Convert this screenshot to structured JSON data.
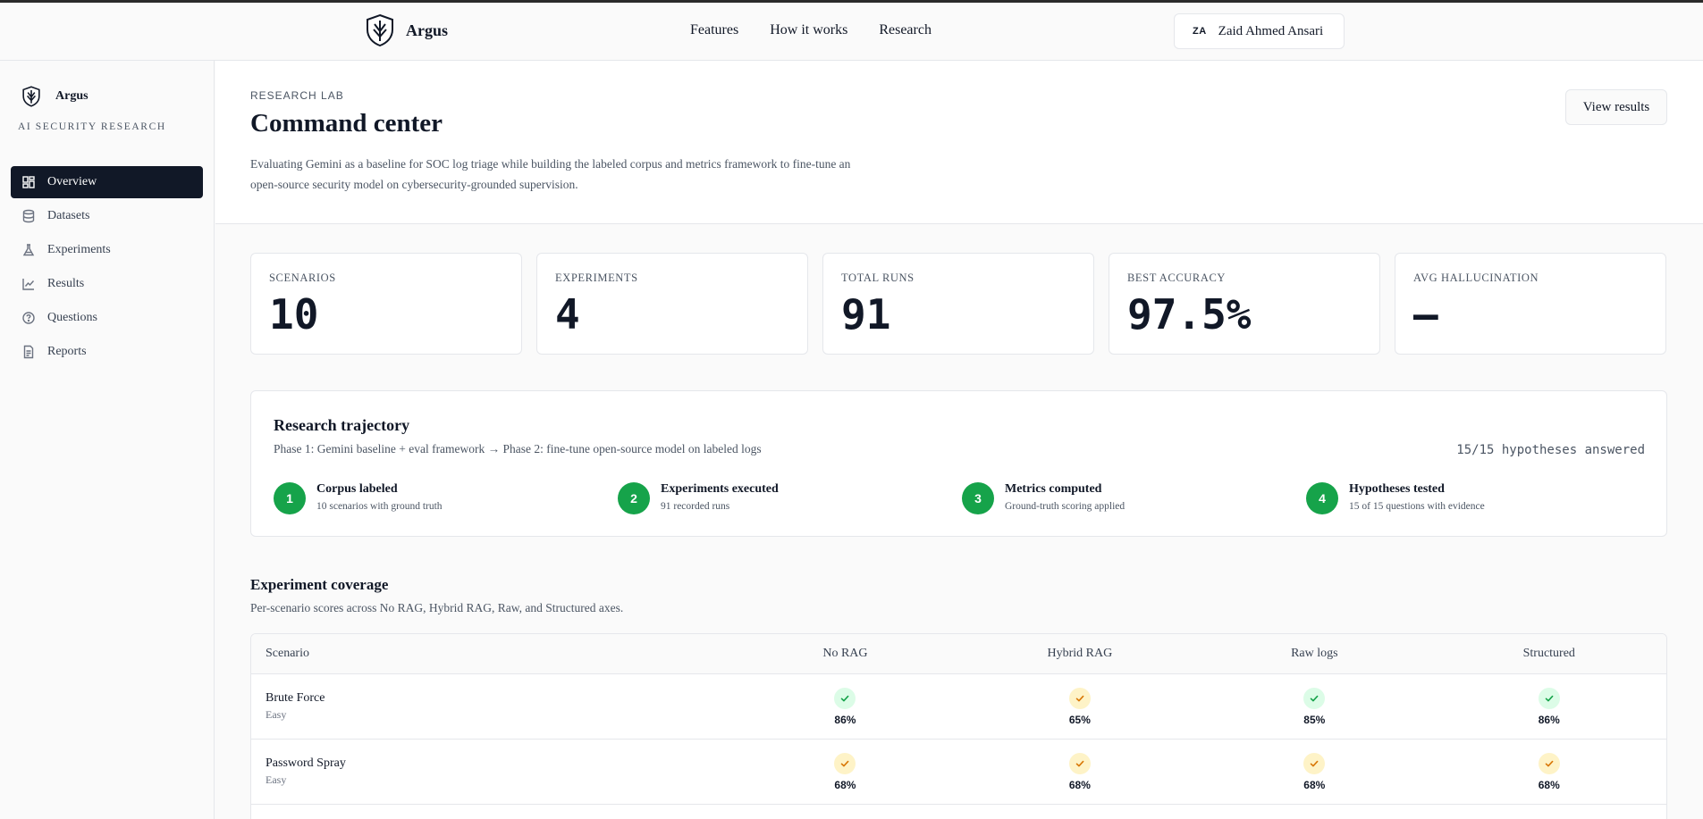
{
  "topnav": {
    "brand": "Argus",
    "links": [
      "Features",
      "How it works",
      "Research"
    ],
    "user": {
      "initials": "ZA",
      "name": "Zaid Ahmed Ansari"
    }
  },
  "sidebar": {
    "brand": "Argus",
    "tagline": "AI SECURITY RESEARCH",
    "items": [
      {
        "label": "Overview",
        "icon": "grid-icon",
        "active": true
      },
      {
        "label": "Datasets",
        "icon": "database-icon",
        "active": false
      },
      {
        "label": "Experiments",
        "icon": "flask-icon",
        "active": false
      },
      {
        "label": "Results",
        "icon": "line-chart-icon",
        "active": false
      },
      {
        "label": "Questions",
        "icon": "help-circle-icon",
        "active": false
      },
      {
        "label": "Reports",
        "icon": "file-text-icon",
        "active": false
      }
    ]
  },
  "header": {
    "eyebrow": "RESEARCH LAB",
    "title": "Command center",
    "description": "Evaluating Gemini as a baseline for SOC log triage while building the labeled corpus and metrics framework to fine-tune an open-source security model on cybersecurity-grounded supervision.",
    "action": "View results"
  },
  "stats": [
    {
      "label": "SCENARIOS",
      "value": "10"
    },
    {
      "label": "EXPERIMENTS",
      "value": "4"
    },
    {
      "label": "TOTAL RUNS",
      "value": "91"
    },
    {
      "label": "BEST ACCURACY",
      "value": "97.5%"
    },
    {
      "label": "AVG HALLUCINATION",
      "value": "–"
    }
  ],
  "trajectory": {
    "title": "Research trajectory",
    "subtitle": "Phase 1: Gemini baseline + eval framework → Phase 2: fine-tune open-source model on labeled logs",
    "count": "15/15 hypotheses answered",
    "steps": [
      {
        "num": "1",
        "title": "Corpus labeled",
        "detail": "10 scenarios with ground truth"
      },
      {
        "num": "2",
        "title": "Experiments executed",
        "detail": "91 recorded runs"
      },
      {
        "num": "3",
        "title": "Metrics computed",
        "detail": "Ground-truth scoring applied"
      },
      {
        "num": "4",
        "title": "Hypotheses tested",
        "detail": "15 of 15 questions with evidence"
      }
    ]
  },
  "coverage": {
    "title": "Experiment coverage",
    "subtitle": "Per-scenario scores across No RAG, Hybrid RAG, Raw, and Structured axes.",
    "columns": [
      "Scenario",
      "No RAG",
      "Hybrid RAG",
      "Raw logs",
      "Structured"
    ],
    "rows": [
      {
        "name": "Brute Force",
        "difficulty": "Easy",
        "cells": [
          {
            "value": "86%",
            "status": "good"
          },
          {
            "value": "65%",
            "status": "warn"
          },
          {
            "value": "85%",
            "status": "good"
          },
          {
            "value": "86%",
            "status": "good"
          }
        ]
      },
      {
        "name": "Password Spray",
        "difficulty": "Easy",
        "cells": [
          {
            "value": "68%",
            "status": "warn"
          },
          {
            "value": "68%",
            "status": "warn"
          },
          {
            "value": "68%",
            "status": "warn"
          },
          {
            "value": "68%",
            "status": "warn"
          }
        ]
      }
    ]
  },
  "colors": {
    "accent_dark": "#111827",
    "success": "#16a34a",
    "check_good_bg": "#dcfce7",
    "check_warn_bg": "#fef3c7",
    "check_good": "#16a34a",
    "check_warn": "#d97706"
  }
}
